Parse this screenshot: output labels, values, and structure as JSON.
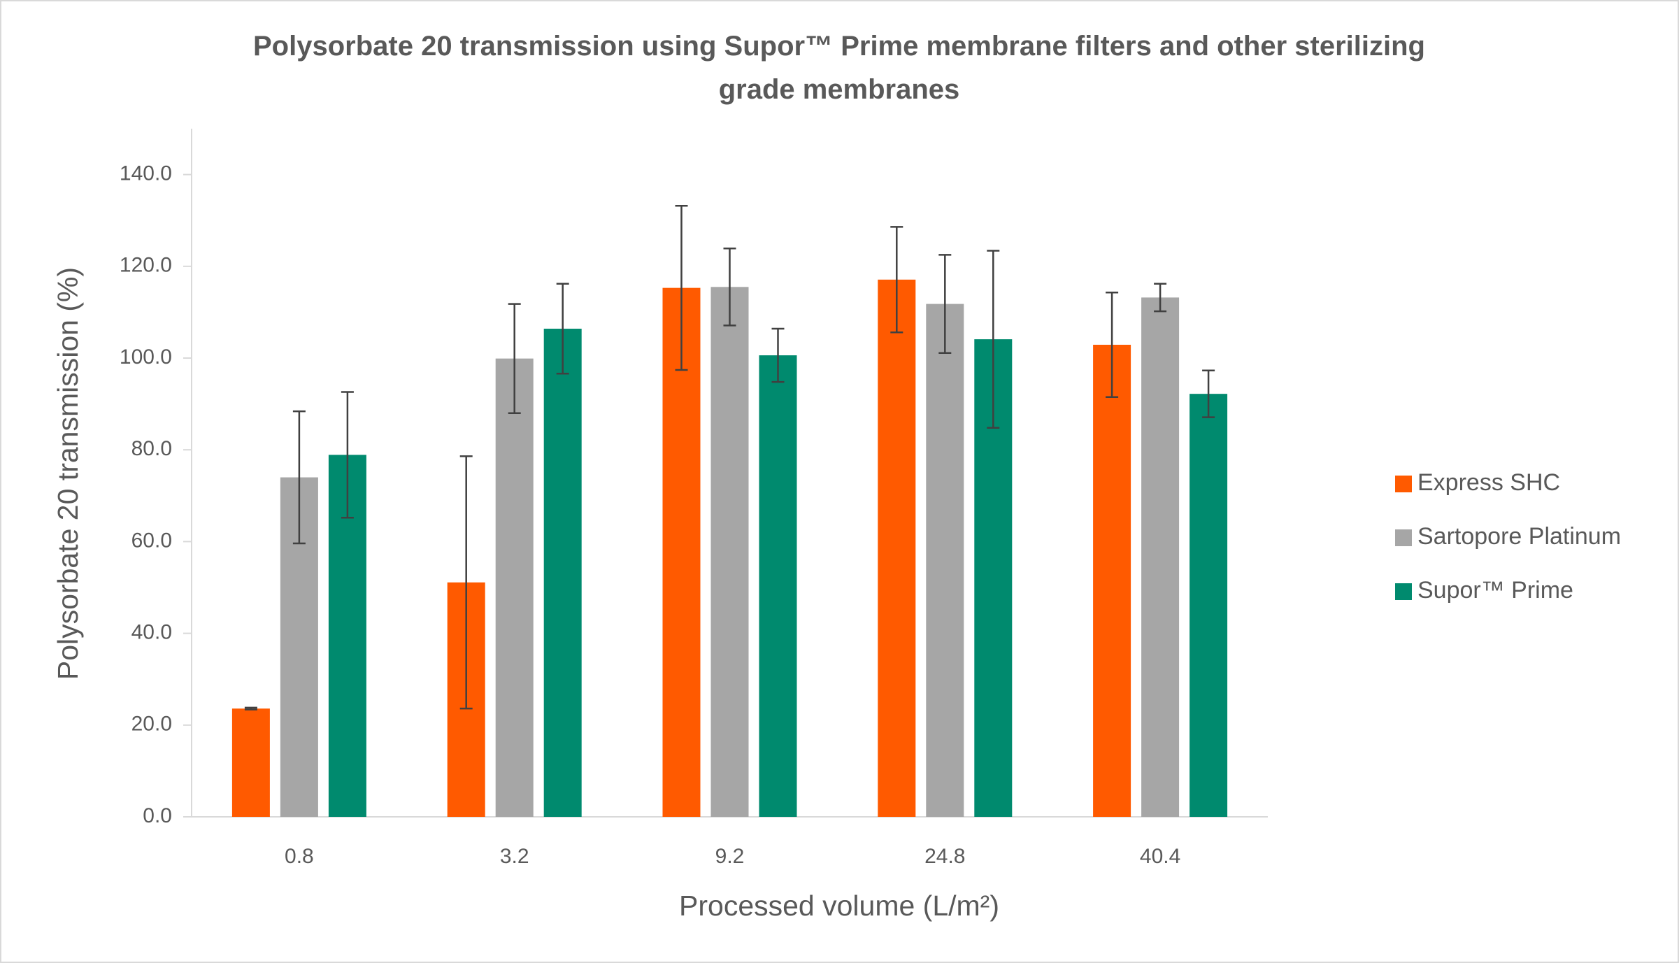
{
  "chart_data": {
    "type": "bar",
    "title": "Polysorbate 20 transmission using Supor™ Prime membrane filters and other sterilizing grade membranes",
    "xlabel": "Processed volume (L/m²)",
    "ylabel": "Polysorbate 20 transmission (%)",
    "categories": [
      "0.8",
      "3.2",
      "9.2",
      "24.8",
      "40.4"
    ],
    "series": [
      {
        "name": "Express SHC",
        "color": "#ff5a00",
        "values": [
          23.6,
          51.1,
          115.3,
          117.1,
          102.9
        ],
        "errors": [
          0.2,
          27.5,
          17.9,
          11.5,
          11.4
        ]
      },
      {
        "name": "Sartopore Platinum",
        "color": "#a6a6a6",
        "values": [
          74.0,
          99.9,
          115.5,
          111.8,
          113.2
        ],
        "errors": [
          14.4,
          11.9,
          8.4,
          10.7,
          3.0
        ]
      },
      {
        "name": "Supor™ Prime",
        "color": "#008a6e",
        "values": [
          78.9,
          106.4,
          100.6,
          104.1,
          92.2
        ],
        "errors": [
          13.7,
          9.8,
          5.8,
          19.3,
          5.1
        ]
      }
    ],
    "ylim": [
      0,
      150
    ],
    "yticks": [
      {
        "value": 0,
        "label": "0.0"
      },
      {
        "value": 20,
        "label": "20.0"
      },
      {
        "value": 40,
        "label": "40.0"
      },
      {
        "value": 60,
        "label": "60.0"
      },
      {
        "value": 80,
        "label": "80.0"
      },
      {
        "value": 100,
        "label": "100.0"
      },
      {
        "value": 120,
        "label": "120.0"
      },
      {
        "value": 140,
        "label": "140.0"
      }
    ],
    "grid": false,
    "legend": "right"
  }
}
